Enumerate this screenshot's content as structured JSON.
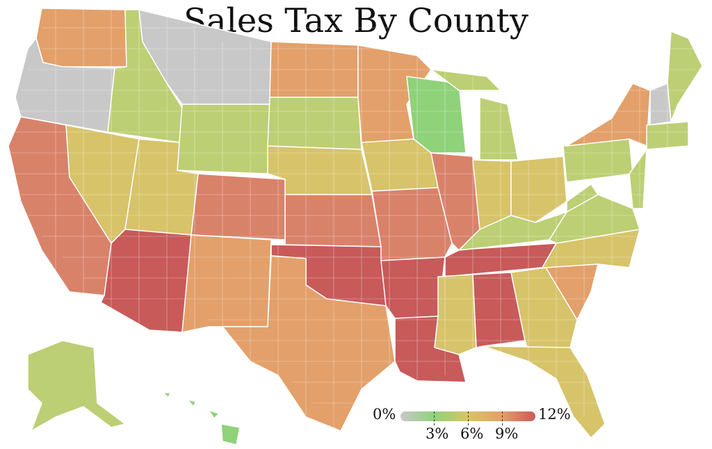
{
  "title": "Sales Tax By County",
  "legend": {
    "min_label": "0%",
    "max_label": "12%",
    "tick_labels": [
      "3%",
      "6%",
      "9%"
    ],
    "colors": [
      "#c8c8c8",
      "#8fd27a",
      "#d7c36a",
      "#e3a06a",
      "#c85a5a"
    ]
  },
  "colors": {
    "none": "#c8c8c8",
    "low": "#8fd27a",
    "low_mid": "#bccf74",
    "mid": "#d7c36a",
    "mid_high": "#e3a06a",
    "high": "#d9826a",
    "very_high": "#c85a5a",
    "border": "#ffffff"
  }
}
